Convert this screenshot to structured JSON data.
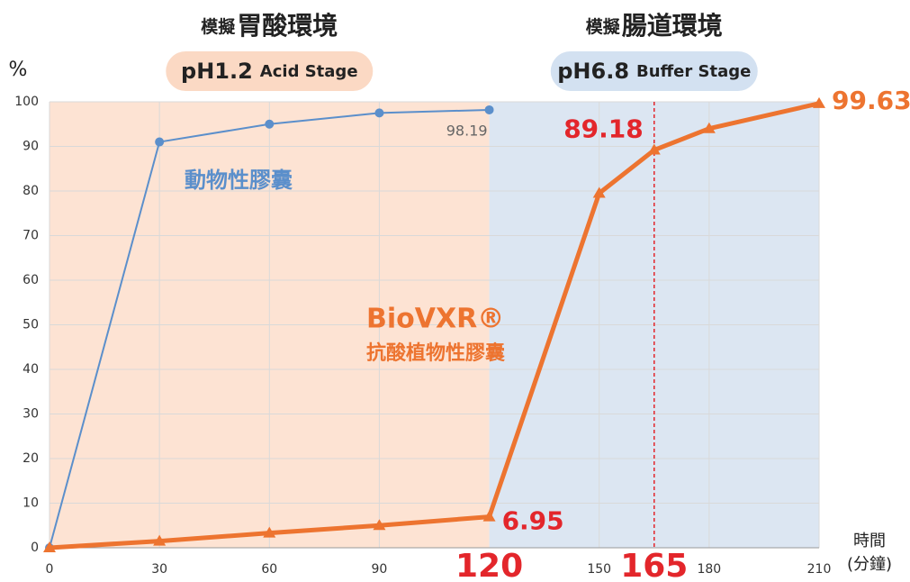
{
  "chart_data": {
    "type": "line",
    "stages": [
      {
        "prefix": "模擬",
        "title": "胃酸環境",
        "badge_main": "pH1.2",
        "badge_sub": "Acid Stage",
        "xrange": [
          0,
          120
        ],
        "color": "#fde3d3",
        "badge_color": "#fbd9c4"
      },
      {
        "prefix": "模擬",
        "title": "腸道環境",
        "badge_main": "pH6.8",
        "badge_sub": "Buffer Stage",
        "xrange": [
          120,
          210
        ],
        "color": "#dce6f2",
        "badge_color": "#d3e1f1"
      }
    ],
    "y_label": "%",
    "x_label": "時間",
    "x_unit": "(分鐘)",
    "x": [
      0,
      30,
      60,
      90,
      120,
      150,
      165,
      180,
      210
    ],
    "series": [
      {
        "name": "動物性膠囊",
        "color": "#5b8fcb",
        "values": [
          0,
          91,
          95,
          97.5,
          98.19,
          null,
          null,
          null,
          null
        ],
        "labels": [
          {
            "index": 4,
            "color": "#666666"
          }
        ]
      },
      {
        "name": "BioVXR®",
        "subtitle": "抗酸植物性膠囊",
        "color": "#ed7430",
        "values": [
          0,
          1.5,
          3.3,
          5,
          6.95,
          79.5,
          89.18,
          94,
          99.63
        ],
        "labels": [
          {
            "index": 4,
            "color": "#e3262b"
          },
          {
            "index": 6,
            "color": "#e3262b"
          },
          {
            "index": 8,
            "color": "#ed7430"
          }
        ]
      }
    ],
    "xlim": [
      0,
      210
    ],
    "xticks": [
      0,
      30,
      60,
      90,
      150,
      180,
      210
    ],
    "highlight_xticks": [
      120,
      165
    ],
    "reference_line": 165,
    "ylim": [
      0,
      100
    ],
    "yticks": [
      0,
      10,
      20,
      30,
      40,
      50,
      60,
      70,
      80,
      90,
      100
    ],
    "grid": true
  }
}
